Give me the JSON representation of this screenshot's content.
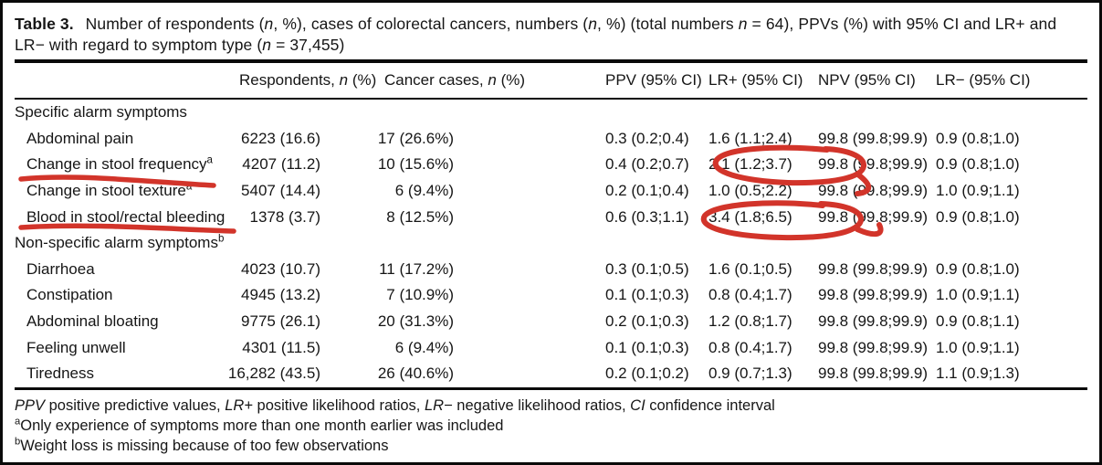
{
  "table": {
    "caption": {
      "label": "Table 3.",
      "text": "Number of respondents (*n*, %), cases of colorectal cancers, numbers (*n*, %) (total numbers *n* = 64), PPVs (%) with 95% CI and LR+ and LR− with regard to symptom type (*n* = 37,455)"
    },
    "columns": [
      "",
      "Respondents, *n* (%)",
      "Cancer cases, *n* (%)",
      "PPV (95% CI)",
      "LR+ (95% CI)",
      "NPV (95% CI)",
      "LR− (95% CI)"
    ],
    "sections": [
      {
        "header": "Specific alarm symptoms",
        "rows": [
          {
            "symptom": "Abdominal pain",
            "respondents": "6223 (16.6)",
            "cancer_cases": "17 (26.6%)",
            "ppv": "0.3 (0.2;0.4)",
            "lr_plus": "1.6 (1.1;2.4)",
            "npv": "99.8 (99.8;99.9)",
            "lr_minus": "0.9 (0.8;1.0)"
          },
          {
            "symptom": "Change in stool frequency^a^",
            "respondents": "4207 (11.2)",
            "cancer_cases": "10 (15.6%)",
            "ppv": "0.4 (0.2;0.7)",
            "lr_plus": "2.1 (1.2;3.7)",
            "npv": "99.8 (99.8;99.9)",
            "lr_minus": "0.9 (0.8;1.0)",
            "annotated_symptom": "underline",
            "annotated_lr_plus": "circle"
          },
          {
            "symptom": "Change in stool texture^a^",
            "respondents": "5407 (14.4)",
            "cancer_cases": "6 (9.4%)",
            "ppv": "0.2 (0.1;0.4)",
            "lr_plus": "1.0 (0.5;2.2)",
            "npv": "99.8 (99.8;99.9)",
            "lr_minus": "1.0 (0.9;1.1)"
          },
          {
            "symptom": "Blood in stool/rectal bleeding",
            "respondents": "1378 (3.7)",
            "cancer_cases": "8 (12.5%)",
            "ppv": "0.6 (0.3;1.1)",
            "lr_plus": "3.4 (1.8;6.5)",
            "npv": "99.8 (99.8;99.9)",
            "lr_minus": "0.9 (0.8;1.0)",
            "annotated_symptom": "underline",
            "annotated_lr_plus": "circle"
          }
        ]
      },
      {
        "header": "Non-specific alarm symptoms^b^",
        "rows": [
          {
            "symptom": "Diarrhoea",
            "respondents": "4023 (10.7)",
            "cancer_cases": "11 (17.2%)",
            "ppv": "0.3 (0.1;0.5)",
            "lr_plus": "1.6 (0.1;0.5)",
            "npv": "99.8 (99.8;99.9)",
            "lr_minus": "0.9 (0.8;1.0)"
          },
          {
            "symptom": "Constipation",
            "respondents": "4945 (13.2)",
            "cancer_cases": "7 (10.9%)",
            "ppv": "0.1 (0.1;0.3)",
            "lr_plus": "0.8 (0.4;1.7)",
            "npv": "99.8 (99.8;99.9)",
            "lr_minus": "1.0 (0.9;1.1)"
          },
          {
            "symptom": "Abdominal bloating",
            "respondents": "9775 (26.1)",
            "cancer_cases": "20 (31.3%)",
            "ppv": "0.2 (0.1;0.3)",
            "lr_plus": "1.2 (0.8;1.7)",
            "npv": "99.8 (99.8;99.9)",
            "lr_minus": "0.9 (0.8;1.1)"
          },
          {
            "symptom": "Feeling unwell",
            "respondents": "4301 (11.5)",
            "cancer_cases": "6 (9.4%)",
            "ppv": "0.1 (0.1;0.3)",
            "lr_plus": "0.8 (0.4;1.7)",
            "npv": "99.8 (99.8;99.9)",
            "lr_minus": "1.0 (0.9;1.1)"
          },
          {
            "symptom": "Tiredness",
            "respondents": "16,282 (43.5)",
            "cancer_cases": "26 (40.6%)",
            "ppv": "0.2 (0.1;0.2)",
            "lr_plus": "0.9 (0.7;1.3)",
            "npv": "99.8 (99.8;99.9)",
            "lr_minus": "1.1 (0.9;1.3)"
          }
        ]
      }
    ],
    "footnotes": [
      "*PPV* positive predictive values, *LR+* positive likelihood ratios, *LR−* negative likelihood ratios, *CI* confidence interval",
      "^a^Only experience of symptoms more than one month earlier was included",
      "^b^Weight loss is missing because of too few observations"
    ]
  },
  "annotations": {
    "color": "#d2342a",
    "marks": [
      {
        "type": "underline",
        "target": "Change in stool frequency"
      },
      {
        "type": "underline",
        "target": "Blood in stool/rectal bleeding"
      },
      {
        "type": "circle",
        "target": "2.1 (1.2;3.7)",
        "column": "LR+ (95% CI)"
      },
      {
        "type": "circle",
        "target": "3.4 (1.8;6.5)",
        "column": "LR+ (95% CI)"
      }
    ]
  }
}
